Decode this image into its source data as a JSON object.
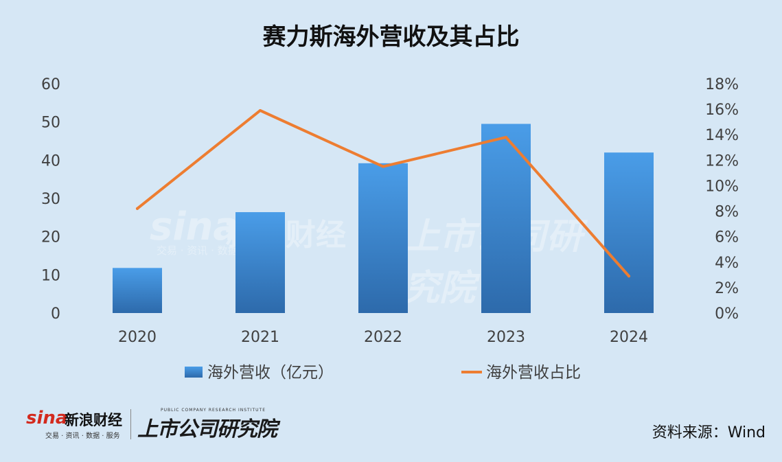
{
  "chart_data": {
    "type": "bar",
    "title": "赛力斯海外营收及其占比",
    "categories": [
      "2020",
      "2021",
      "2022",
      "2023",
      "2024"
    ],
    "series": [
      {
        "name": "海外营收（亿元）",
        "type": "bar",
        "axis": "left",
        "values": [
          11.8,
          26.4,
          39.2,
          49.5,
          42.0
        ]
      },
      {
        "name": "海外营收占比",
        "type": "line",
        "axis": "right",
        "values": [
          8.2,
          15.9,
          11.5,
          13.8,
          2.9
        ]
      }
    ],
    "left_axis": {
      "ylim": [
        0,
        60
      ],
      "ticks": [
        "0",
        "10",
        "20",
        "30",
        "40",
        "50",
        "60"
      ]
    },
    "right_axis": {
      "ylim": [
        0,
        18
      ],
      "ticks": [
        "0%",
        "2%",
        "4%",
        "6%",
        "8%",
        "10%",
        "12%",
        "14%",
        "16%",
        "18%"
      ]
    },
    "grid": false,
    "legend": "bottom",
    "colors": {
      "bar_top": "#4a9de8",
      "bar_bottom": "#2d6aab",
      "line": "#ed7d31",
      "axis_text": "#404040"
    }
  },
  "footer": {
    "source": "资料来源：Wind",
    "logo_sina": "sina",
    "logo_sina_cn": "新浪财经",
    "logo_tagline": "交易 · 资讯 · 数据 · 服务",
    "logo_institute": "上市公司研究院",
    "logo_institute_en": "PUBLIC COMPANY RESEARCH INSTITUTE"
  },
  "watermark": {
    "sina": "sina",
    "sina_cn": "新浪财经",
    "tagline": "交易 · 资讯 · 数据 · 服务",
    "institute": "上市公司研究院"
  }
}
